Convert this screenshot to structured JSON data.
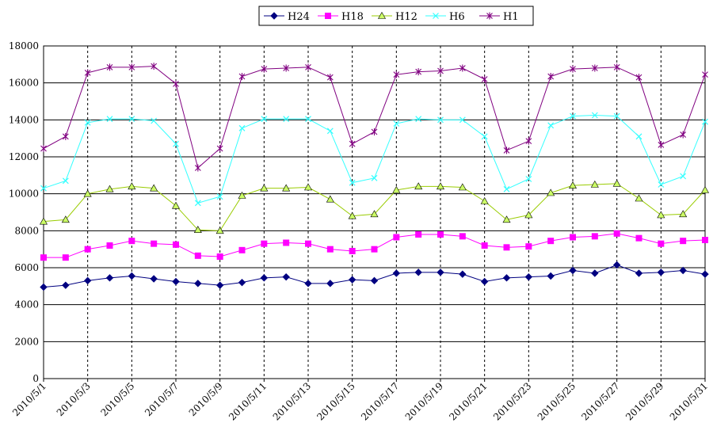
{
  "chart_data": {
    "type": "line",
    "title": "",
    "xlabel": "",
    "ylabel": "",
    "ylim": [
      0,
      18000
    ],
    "yticks": [
      0,
      2000,
      4000,
      6000,
      8000,
      10000,
      12000,
      14000,
      16000,
      18000
    ],
    "grid": {
      "horizontal": "solid",
      "vertical": "dashed"
    },
    "legend": "top-center",
    "x": [
      "2010/5/1",
      "2010/5/2",
      "2010/5/3",
      "2010/5/4",
      "2010/5/5",
      "2010/5/6",
      "2010/5/7",
      "2010/5/8",
      "2010/5/9",
      "2010/5/10",
      "2010/5/11",
      "2010/5/12",
      "2010/5/13",
      "2010/5/14",
      "2010/5/15",
      "2010/5/16",
      "2010/5/17",
      "2010/5/18",
      "2010/5/19",
      "2010/5/20",
      "2010/5/21",
      "2010/5/22",
      "2010/5/23",
      "2010/5/24",
      "2010/5/25",
      "2010/5/26",
      "2010/5/27",
      "2010/5/28",
      "2010/5/29",
      "2010/5/30",
      "2010/5/31"
    ],
    "xtick_labels": [
      "2010/5/1",
      "2010/5/3",
      "2010/5/5",
      "2010/5/7",
      "2010/5/9",
      "2010/5/11",
      "2010/5/13",
      "2010/5/15",
      "2010/5/17",
      "2010/5/19",
      "2010/5/21",
      "2010/5/23",
      "2010/5/25",
      "2010/5/27",
      "2010/5/29",
      "2010/5/31"
    ],
    "series": [
      {
        "name": "H24",
        "color": "#000080",
        "marker": "diamond",
        "values": [
          4950,
          5050,
          5300,
          5450,
          5550,
          5400,
          5250,
          5150,
          5050,
          5200,
          5450,
          5500,
          5150,
          5150,
          5350,
          5300,
          5700,
          5750,
          5750,
          5650,
          5250,
          5450,
          5500,
          5550,
          5850,
          5700,
          6150,
          5700,
          5750,
          5850,
          5650
        ]
      },
      {
        "name": "H18",
        "color": "#ff00ff",
        "marker": "square",
        "values": [
          6550,
          6550,
          7000,
          7200,
          7450,
          7300,
          7250,
          6650,
          6600,
          6950,
          7300,
          7350,
          7300,
          7000,
          6900,
          7000,
          7650,
          7800,
          7800,
          7700,
          7200,
          7100,
          7150,
          7450,
          7650,
          7700,
          7850,
          7600,
          7300,
          7450,
          7500
        ]
      },
      {
        "name": "H12",
        "color": "#99cc00",
        "marker": "triangle",
        "values": [
          8500,
          8600,
          10000,
          10250,
          10400,
          10300,
          9350,
          8050,
          8000,
          9900,
          10300,
          10300,
          10350,
          9700,
          8800,
          8900,
          10200,
          10400,
          10400,
          10350,
          9600,
          8600,
          8850,
          10050,
          10450,
          10500,
          10550,
          9750,
          8850,
          8900,
          10200
        ]
      },
      {
        "name": "H6",
        "color": "#33ffff",
        "marker": "x",
        "values": [
          10300,
          10700,
          13850,
          14050,
          14050,
          13950,
          12700,
          9500,
          9850,
          13550,
          14050,
          14050,
          14050,
          13400,
          10600,
          10850,
          13800,
          14050,
          14000,
          14000,
          13100,
          10250,
          10800,
          13700,
          14200,
          14250,
          14200,
          13100,
          10500,
          10950,
          13900
        ]
      },
      {
        "name": "H1",
        "color": "#800080",
        "marker": "star",
        "values": [
          12450,
          13100,
          16550,
          16850,
          16850,
          16900,
          15950,
          11400,
          12450,
          16350,
          16750,
          16800,
          16850,
          16300,
          12700,
          13350,
          16450,
          16600,
          16650,
          16800,
          16200,
          12350,
          12850,
          16350,
          16750,
          16800,
          16850,
          16300,
          12650,
          13200,
          16450
        ]
      }
    ]
  }
}
